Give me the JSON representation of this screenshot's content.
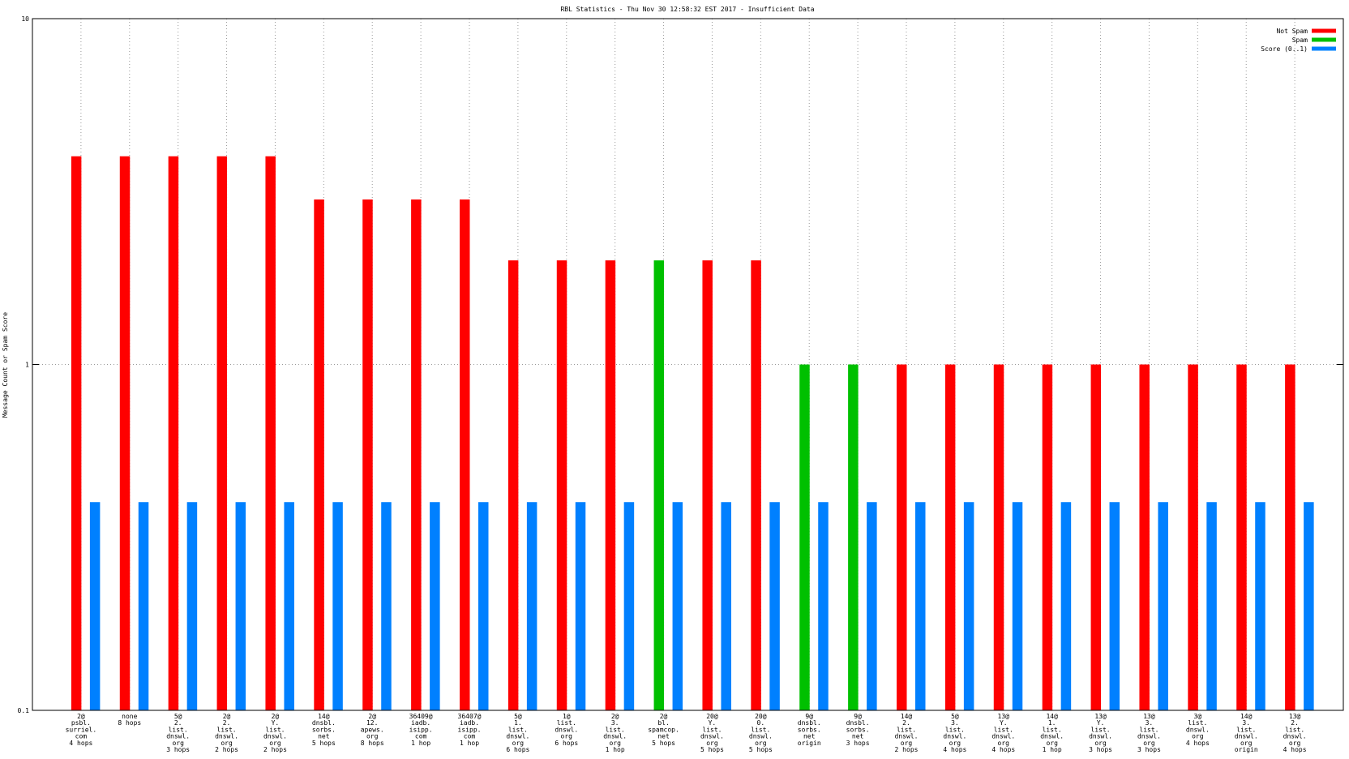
{
  "chart_data": {
    "type": "bar",
    "title": "RBL Statistics - Thu Nov 30 12:58:32 EST 2017 - Insufficient Data",
    "y_label": "Message Count or Spam Score",
    "log_scale": true,
    "grid": true,
    "legend": "top-right",
    "ylim": [
      0.1,
      10
    ],
    "yticks": [
      0.1,
      1,
      10
    ],
    "categories": [
      [
        "2@",
        "psbl.",
        "surriel.",
        "com",
        "4 hops"
      ],
      [
        "none",
        "8 hops"
      ],
      [
        "5@",
        "2.",
        "list.",
        "dnswl.",
        "org",
        "3 hops"
      ],
      [
        "2@",
        "2.",
        "list.",
        "dnswl.",
        "org",
        "2 hops"
      ],
      [
        "2@",
        "Y.",
        "list.",
        "dnswl.",
        "org",
        "2 hops"
      ],
      [
        "14@",
        "dnsbl.",
        "sorbs.",
        "net",
        "5 hops"
      ],
      [
        "2@",
        "12.",
        "apews.",
        "org",
        "8 hops"
      ],
      [
        "36409@",
        "iadb.",
        "isipp.",
        "com",
        "1 hop"
      ],
      [
        "36407@",
        "iadb.",
        "isipp.",
        "com",
        "1 hop"
      ],
      [
        "5@",
        "1.",
        "list.",
        "dnswl.",
        "org",
        "6 hops"
      ],
      [
        "1@",
        "list.",
        "dnswl.",
        "org",
        "6 hops"
      ],
      [
        "2@",
        "3.",
        "list.",
        "dnswl.",
        "org",
        "1 hop"
      ],
      [
        "2@",
        "bl.",
        "spamcop.",
        "net",
        "5 hops"
      ],
      [
        "20@",
        "Y.",
        "list.",
        "dnswl.",
        "org",
        "5 hops"
      ],
      [
        "20@",
        "0.",
        "list.",
        "dnswl.",
        "org",
        "5 hops"
      ],
      [
        "9@",
        "dnsbl.",
        "sorbs.",
        "net",
        "origin"
      ],
      [
        "9@",
        "dnsbl.",
        "sorbs.",
        "net",
        "3 hops"
      ],
      [
        "14@",
        "2.",
        "list.",
        "dnswl.",
        "org",
        "2 hops"
      ],
      [
        "5@",
        "3.",
        "list.",
        "dnswl.",
        "org",
        "4 hops"
      ],
      [
        "13@",
        "Y.",
        "list.",
        "dnswl.",
        "org",
        "4 hops"
      ],
      [
        "14@",
        "1.",
        "list.",
        "dnswl.",
        "org",
        "1 hop"
      ],
      [
        "13@",
        "Y.",
        "list.",
        "dnswl.",
        "org",
        "3 hops"
      ],
      [
        "13@",
        "3.",
        "list.",
        "dnswl.",
        "org",
        "3 hops"
      ],
      [
        "3@",
        "list.",
        "dnswl.",
        "org",
        "4 hops"
      ],
      [
        "14@",
        "3.",
        "list.",
        "dnswl.",
        "org",
        "origin"
      ],
      [
        "13@",
        "2.",
        "list.",
        "dnswl.",
        "org",
        "4 hops"
      ]
    ],
    "series": [
      {
        "name": "Not Spam",
        "color": "#ff0000",
        "values": [
          4,
          4,
          4,
          4,
          4,
          3,
          3,
          3,
          3,
          2,
          2,
          2,
          null,
          2,
          2,
          null,
          null,
          1,
          1,
          1,
          1,
          1,
          1,
          1,
          1,
          1
        ]
      },
      {
        "name": "Spam",
        "color": "#00c000",
        "values": [
          null,
          null,
          null,
          null,
          null,
          null,
          null,
          null,
          null,
          null,
          null,
          null,
          2,
          null,
          null,
          1,
          1,
          null,
          null,
          null,
          null,
          null,
          null,
          null,
          null,
          null
        ]
      },
      {
        "name": "Score (0..1)",
        "color": "#0080ff",
        "values": [
          0.4,
          0.4,
          0.4,
          0.4,
          0.4,
          0.4,
          0.4,
          0.4,
          0.4,
          0.4,
          0.4,
          0.4,
          0.4,
          0.4,
          0.4,
          0.4,
          0.4,
          0.4,
          0.4,
          0.4,
          0.4,
          0.4,
          0.4,
          0.4,
          0.4,
          0.4
        ]
      }
    ]
  }
}
